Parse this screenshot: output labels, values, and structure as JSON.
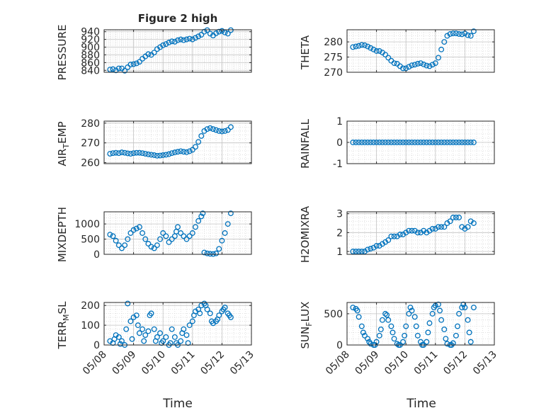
{
  "figure": {
    "title": "Figure 2 high",
    "series_color": "#0072BD",
    "xlabel": "Time",
    "time_ticks": [
      "05/08",
      "05/09",
      "05/10",
      "05/11",
      "05/12",
      "05/13"
    ]
  },
  "chart_data": [
    {
      "type": "scatter",
      "ylabel": "PRESSURE",
      "xlim": [
        0,
        5
      ],
      "ylim": [
        835,
        945
      ],
      "yticks": [
        840,
        860,
        880,
        900,
        920,
        940
      ],
      "grid": true,
      "x": [
        0.2,
        0.3,
        0.4,
        0.5,
        0.6,
        0.7,
        0.8,
        0.9,
        1.0,
        1.1,
        1.2,
        1.3,
        1.4,
        1.5,
        1.6,
        1.7,
        1.8,
        1.9,
        2.0,
        2.1,
        2.2,
        2.3,
        2.4,
        2.5,
        2.6,
        2.7,
        2.8,
        2.9,
        3.0,
        3.1,
        3.2,
        3.3,
        3.4,
        3.5,
        3.6,
        3.7,
        3.8,
        3.9,
        4.0,
        4.1,
        4.2,
        4.3
      ],
      "y": [
        842,
        843,
        840,
        845,
        845,
        839,
        848,
        855,
        856,
        858,
        862,
        870,
        876,
        882,
        880,
        886,
        895,
        900,
        905,
        908,
        912,
        915,
        914,
        918,
        920,
        918,
        920,
        922,
        920,
        924,
        928,
        932,
        940,
        944,
        935,
        930,
        936,
        940,
        942,
        938,
        935,
        944
      ]
    },
    {
      "type": "scatter",
      "ylabel": "THETA",
      "xlim": [
        0,
        5
      ],
      "ylim": [
        270,
        284
      ],
      "yticks": [
        270,
        275,
        280
      ],
      "grid": true,
      "x": [
        0.2,
        0.3,
        0.4,
        0.5,
        0.6,
        0.7,
        0.8,
        0.9,
        1.0,
        1.1,
        1.2,
        1.3,
        1.4,
        1.5,
        1.6,
        1.7,
        1.8,
        1.9,
        2.0,
        2.1,
        2.2,
        2.3,
        2.4,
        2.5,
        2.6,
        2.7,
        2.8,
        2.9,
        3.0,
        3.1,
        3.2,
        3.3,
        3.4,
        3.5,
        3.6,
        3.7,
        3.8,
        3.9,
        4.0,
        4.1,
        4.2,
        4.3
      ],
      "y": [
        278.3,
        278.5,
        278.7,
        279.0,
        278.9,
        278.5,
        278.0,
        277.5,
        277.0,
        277.0,
        276.5,
        275.8,
        274.8,
        273.8,
        273.0,
        272.8,
        272.0,
        271.3,
        271.3,
        271.8,
        272.3,
        272.5,
        272.8,
        273.0,
        272.6,
        272.2,
        272.0,
        272.5,
        273.0,
        274.8,
        277.5,
        280.0,
        282.0,
        282.6,
        282.8,
        282.8,
        282.6,
        282.5,
        282.8,
        282.2,
        282.0,
        283.5
      ]
    },
    {
      "type": "scatter",
      "ylabel": "AIR_TEMP",
      "xlim": [
        0,
        5
      ],
      "ylim": [
        259.5,
        281
      ],
      "yticks": [
        260,
        270,
        280
      ],
      "grid": true,
      "x": [
        0.2,
        0.3,
        0.4,
        0.5,
        0.6,
        0.7,
        0.8,
        0.9,
        1.0,
        1.1,
        1.2,
        1.3,
        1.4,
        1.5,
        1.6,
        1.7,
        1.8,
        1.9,
        2.0,
        2.1,
        2.2,
        2.3,
        2.4,
        2.5,
        2.6,
        2.7,
        2.8,
        2.9,
        3.0,
        3.1,
        3.2,
        3.3,
        3.4,
        3.5,
        3.6,
        3.7,
        3.8,
        3.9,
        4.0,
        4.1,
        4.2,
        4.3
      ],
      "y": [
        264.5,
        264.8,
        265.0,
        264.8,
        265.2,
        265.0,
        264.7,
        264.5,
        264.8,
        265.0,
        265.0,
        264.8,
        264.5,
        264.2,
        264.0,
        263.8,
        263.5,
        263.6,
        263.8,
        264.0,
        264.3,
        264.8,
        265.2,
        265.5,
        265.8,
        265.5,
        265.3,
        265.8,
        266.5,
        268.0,
        270.5,
        273.5,
        276.0,
        277.0,
        277.5,
        277.0,
        276.5,
        276.0,
        275.8,
        276.0,
        276.5,
        278.0
      ]
    },
    {
      "type": "scatter",
      "ylabel": "RAINFALL",
      "xlim": [
        0,
        5
      ],
      "ylim": [
        -1,
        1
      ],
      "yticks": [
        -1,
        0,
        1
      ],
      "grid": true,
      "x": [
        0.2,
        0.3,
        0.4,
        0.5,
        0.6,
        0.7,
        0.8,
        0.9,
        1.0,
        1.1,
        1.2,
        1.3,
        1.4,
        1.5,
        1.6,
        1.7,
        1.8,
        1.9,
        2.0,
        2.1,
        2.2,
        2.3,
        2.4,
        2.5,
        2.6,
        2.7,
        2.8,
        2.9,
        3.0,
        3.1,
        3.2,
        3.3,
        3.4,
        3.5,
        3.6,
        3.7,
        3.8,
        3.9,
        4.0,
        4.1,
        4.2,
        4.3
      ],
      "y": [
        0,
        0,
        0,
        0,
        0,
        0,
        0,
        0,
        0,
        0,
        0,
        0,
        0,
        0,
        0,
        0,
        0,
        0,
        0,
        0,
        0,
        0,
        0,
        0,
        0,
        0,
        0,
        0,
        0,
        0,
        0,
        0,
        0,
        0,
        0,
        0,
        0,
        0,
        0,
        0,
        0,
        0
      ]
    },
    {
      "type": "scatter",
      "ylabel": "MIXDEPTH",
      "xlim": [
        0,
        5
      ],
      "ylim": [
        0,
        1400
      ],
      "yticks": [
        0,
        500,
        1000
      ],
      "grid": true,
      "x": [
        0.2,
        0.3,
        0.4,
        0.5,
        0.6,
        0.7,
        0.8,
        0.9,
        1.0,
        1.1,
        1.2,
        1.3,
        1.4,
        1.5,
        1.6,
        1.7,
        1.8,
        1.9,
        2.0,
        2.1,
        2.2,
        2.3,
        2.4,
        2.45,
        2.5,
        2.6,
        2.7,
        2.8,
        2.9,
        3.0,
        3.1,
        3.2,
        3.3,
        3.35,
        3.4,
        3.5,
        3.6,
        3.7,
        3.8,
        3.9,
        4.0,
        4.1,
        4.2,
        4.3
      ],
      "y": [
        650,
        600,
        450,
        300,
        200,
        300,
        500,
        700,
        800,
        850,
        900,
        700,
        500,
        350,
        250,
        200,
        300,
        500,
        700,
        600,
        400,
        500,
        600,
        750,
        900,
        700,
        600,
        500,
        600,
        700,
        900,
        1100,
        1250,
        1350,
        60,
        30,
        15,
        10,
        30,
        180,
        450,
        700,
        1000,
        1350
      ]
    },
    {
      "type": "scatter",
      "ylabel": "H2OMIXRA",
      "xlim": [
        0,
        5
      ],
      "ylim": [
        0.85,
        3.1
      ],
      "yticks": [
        1,
        2,
        3
      ],
      "grid": true,
      "x": [
        0.2,
        0.3,
        0.4,
        0.5,
        0.6,
        0.7,
        0.8,
        0.9,
        1.0,
        1.1,
        1.2,
        1.3,
        1.4,
        1.5,
        1.6,
        1.7,
        1.8,
        1.9,
        2.0,
        2.1,
        2.2,
        2.3,
        2.4,
        2.5,
        2.6,
        2.7,
        2.8,
        2.9,
        3.0,
        3.1,
        3.2,
        3.3,
        3.4,
        3.5,
        3.6,
        3.7,
        3.8,
        3.9,
        4.0,
        4.1,
        4.2,
        4.3
      ],
      "y": [
        1.0,
        1.0,
        1.0,
        1.0,
        1.0,
        1.1,
        1.15,
        1.2,
        1.3,
        1.3,
        1.4,
        1.5,
        1.6,
        1.8,
        1.8,
        1.8,
        1.9,
        1.9,
        2.0,
        2.1,
        2.1,
        2.1,
        2.0,
        2.0,
        2.1,
        2.0,
        2.1,
        2.2,
        2.2,
        2.3,
        2.3,
        2.3,
        2.5,
        2.6,
        2.8,
        2.8,
        2.8,
        2.3,
        2.2,
        2.3,
        2.6,
        2.5
      ]
    },
    {
      "type": "scatter",
      "ylabel": "TERR_MSL",
      "xlim": [
        0,
        5
      ],
      "ylim": [
        0,
        215
      ],
      "yticks": [
        0,
        100,
        200
      ],
      "grid": true,
      "x": [
        0.2,
        0.3,
        0.35,
        0.4,
        0.5,
        0.55,
        0.6,
        0.7,
        0.75,
        0.8,
        0.9,
        0.95,
        1.0,
        1.1,
        1.15,
        1.2,
        1.3,
        1.35,
        1.4,
        1.5,
        1.55,
        1.6,
        1.7,
        1.75,
        1.8,
        1.9,
        1.95,
        2.0,
        2.1,
        2.2,
        2.25,
        2.3,
        2.4,
        2.45,
        2.5,
        2.6,
        2.65,
        2.7,
        2.8,
        2.85,
        2.9,
        3.0,
        3.05,
        3.1,
        3.2,
        3.25,
        3.3,
        3.4,
        3.45,
        3.5,
        3.6,
        3.65,
        3.7,
        3.8,
        3.85,
        3.9,
        4.0,
        4.05,
        4.1,
        4.2,
        4.25,
        4.3
      ],
      "y": [
        20,
        10,
        30,
        50,
        40,
        5,
        20,
        0,
        80,
        210,
        120,
        30,
        140,
        150,
        100,
        60,
        80,
        20,
        50,
        70,
        150,
        160,
        80,
        20,
        40,
        60,
        10,
        20,
        40,
        0,
        10,
        80,
        40,
        10,
        0,
        20,
        60,
        80,
        50,
        10,
        100,
        120,
        150,
        170,
        180,
        160,
        200,
        210,
        200,
        180,
        160,
        120,
        110,
        120,
        130,
        150,
        170,
        180,
        190,
        160,
        150,
        140
      ]
    },
    {
      "type": "scatter",
      "ylabel": "SUN_FLUX",
      "xlim": [
        0,
        5
      ],
      "ylim": [
        0,
        680
      ],
      "yticks": [
        0,
        500
      ],
      "grid": true,
      "x": [
        0.2,
        0.3,
        0.35,
        0.4,
        0.5,
        0.55,
        0.6,
        0.7,
        0.75,
        0.8,
        0.9,
        0.95,
        1.0,
        1.1,
        1.15,
        1.2,
        1.3,
        1.35,
        1.4,
        1.5,
        1.55,
        1.6,
        1.7,
        1.75,
        1.8,
        1.9,
        1.95,
        2.0,
        2.1,
        2.15,
        2.2,
        2.3,
        2.35,
        2.4,
        2.5,
        2.55,
        2.6,
        2.7,
        2.75,
        2.8,
        2.9,
        2.95,
        3.0,
        3.1,
        3.15,
        3.2,
        3.3,
        3.35,
        3.4,
        3.5,
        3.55,
        3.6,
        3.7,
        3.75,
        3.8,
        3.9,
        3.95,
        4.0,
        4.1,
        4.15,
        4.2,
        4.3
      ],
      "y": [
        600,
        580,
        550,
        450,
        300,
        200,
        150,
        100,
        50,
        20,
        0,
        0,
        50,
        150,
        250,
        400,
        500,
        480,
        400,
        300,
        200,
        100,
        20,
        0,
        0,
        50,
        150,
        300,
        500,
        600,
        550,
        450,
        300,
        150,
        50,
        0,
        0,
        50,
        200,
        350,
        500,
        600,
        630,
        650,
        550,
        400,
        250,
        100,
        20,
        0,
        0,
        30,
        150,
        300,
        500,
        600,
        650,
        600,
        400,
        200,
        50,
        600
      ]
    }
  ]
}
